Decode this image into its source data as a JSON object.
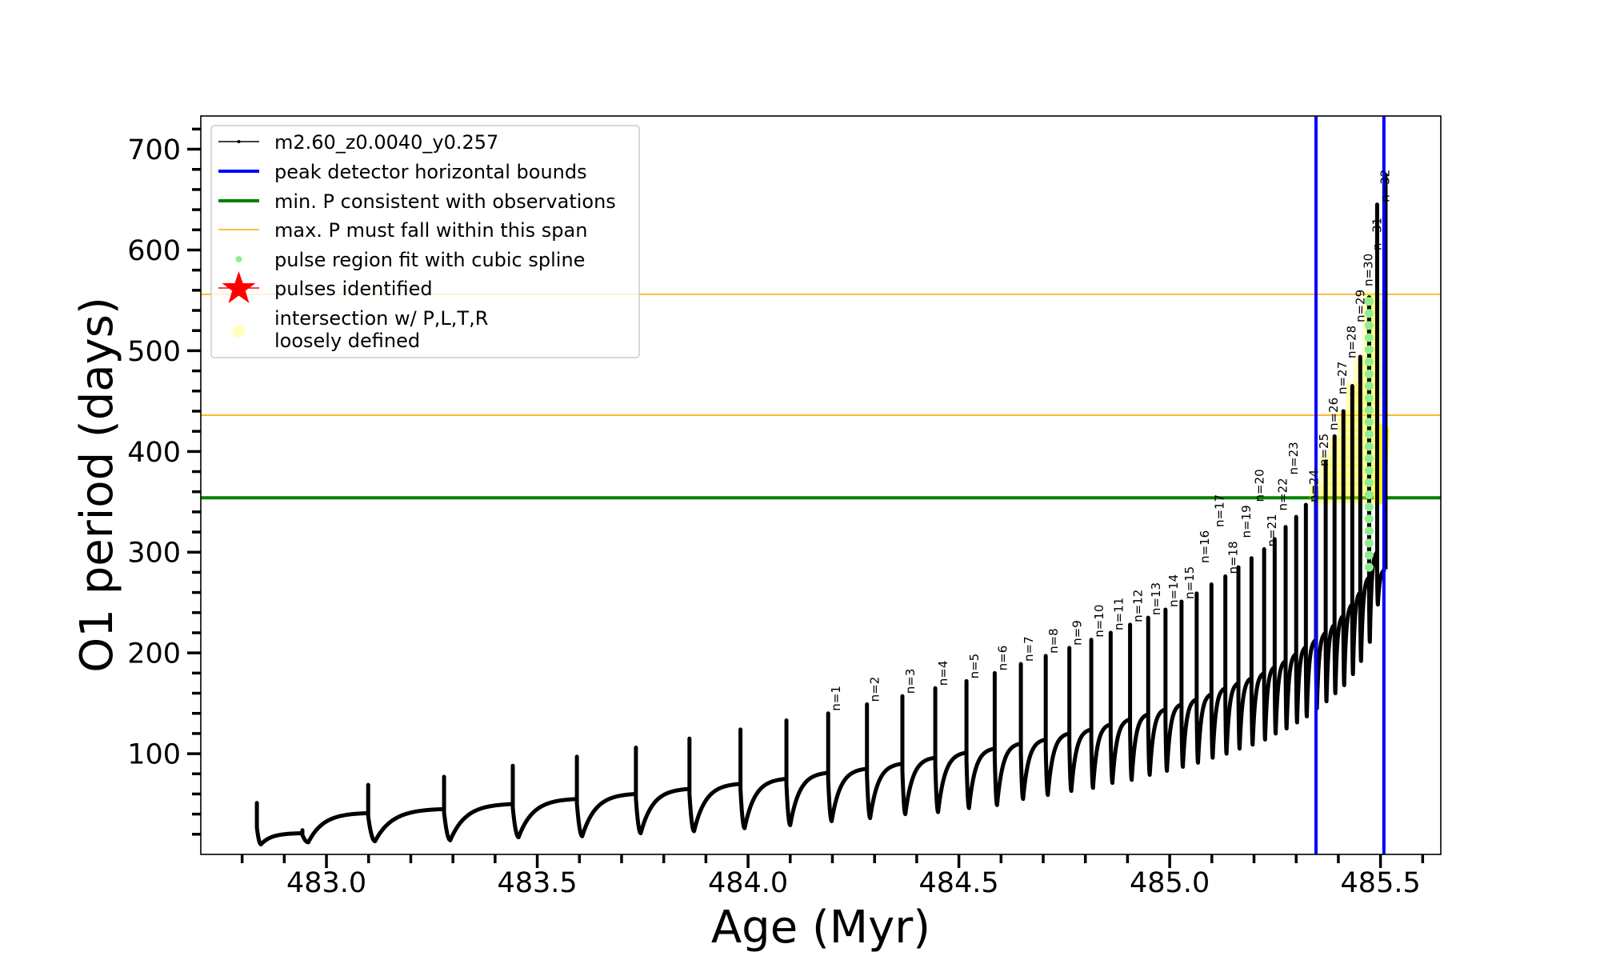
{
  "chart_data": {
    "type": "line",
    "xlabel": "Age (Myr)",
    "ylabel": "O1 period (days)",
    "xlim": [
      482.702,
      485.643
    ],
    "ylim": [
      0,
      733
    ],
    "x_ticks": [
      "483.0",
      "483.5",
      "484.0",
      "484.5",
      "485.0",
      "485.5"
    ],
    "x_tick_values": [
      483.0,
      483.5,
      484.0,
      484.5,
      485.0,
      485.5
    ],
    "x_minor_step": 0.1,
    "y_ticks": [
      "100",
      "200",
      "300",
      "400",
      "500",
      "600",
      "700"
    ],
    "y_tick_values": [
      100,
      200,
      300,
      400,
      500,
      600,
      700
    ],
    "y_minor_step": 20,
    "grid": false,
    "legend_placement": "top-left",
    "series": [
      {
        "name": "m2.60_z0.0040_y0.257",
        "color": "#000000",
        "pulses": [
          {
            "age": 482.835,
            "pre": 29,
            "peak": 51,
            "min": 10,
            "label": ""
          },
          {
            "age": 482.943,
            "pre": 21,
            "peak": 24,
            "min": 12,
            "label": ""
          },
          {
            "age": 483.099,
            "pre": 41,
            "peak": 69,
            "min": 13,
            "label": ""
          },
          {
            "age": 483.279,
            "pre": 45,
            "peak": 77,
            "min": 14,
            "label": ""
          },
          {
            "age": 483.442,
            "pre": 50,
            "peak": 88,
            "min": 17,
            "label": ""
          },
          {
            "age": 483.594,
            "pre": 55,
            "peak": 97,
            "min": 18,
            "label": ""
          },
          {
            "age": 483.734,
            "pre": 60,
            "peak": 106,
            "min": 21,
            "label": ""
          },
          {
            "age": 483.861,
            "pre": 65,
            "peak": 115,
            "min": 23,
            "label": ""
          },
          {
            "age": 483.982,
            "pre": 70,
            "peak": 124,
            "min": 26,
            "label": ""
          },
          {
            "age": 484.091,
            "pre": 75,
            "peak": 133,
            "min": 29,
            "label": ""
          },
          {
            "age": 484.19,
            "pre": 81,
            "peak": 140,
            "min": 33,
            "label": "n=1"
          },
          {
            "age": 484.282,
            "pre": 85,
            "peak": 149,
            "min": 36,
            "label": "n=2"
          },
          {
            "age": 484.366,
            "pre": 90,
            "peak": 157,
            "min": 40,
            "label": "n=3"
          },
          {
            "age": 484.444,
            "pre": 96,
            "peak": 165,
            "min": 42,
            "label": "n=4"
          },
          {
            "age": 484.518,
            "pre": 101,
            "peak": 172,
            "min": 46,
            "label": "n=5"
          },
          {
            "age": 484.585,
            "pre": 105,
            "peak": 180,
            "min": 49,
            "label": "n=6"
          },
          {
            "age": 484.647,
            "pre": 110,
            "peak": 189,
            "min": 55,
            "label": "n=7"
          },
          {
            "age": 484.706,
            "pre": 114,
            "peak": 197,
            "min": 59,
            "label": "n=8"
          },
          {
            "age": 484.762,
            "pre": 120,
            "peak": 205,
            "min": 63,
            "label": "n=9"
          },
          {
            "age": 484.814,
            "pre": 124,
            "peak": 213,
            "min": 66,
            "label": "n=10"
          },
          {
            "age": 484.86,
            "pre": 129,
            "peak": 220,
            "min": 71,
            "label": "n=11"
          },
          {
            "age": 484.906,
            "pre": 134,
            "peak": 228,
            "min": 74,
            "label": "n=12"
          },
          {
            "age": 484.949,
            "pre": 139,
            "peak": 235,
            "min": 79,
            "label": "n=13"
          },
          {
            "age": 484.99,
            "pre": 144,
            "peak": 243,
            "min": 83,
            "label": "n=14"
          },
          {
            "age": 485.028,
            "pre": 149,
            "peak": 251,
            "min": 87,
            "label": "n=15"
          },
          {
            "age": 485.064,
            "pre": 154,
            "peak": 259,
            "min": 91,
            "label": "n=16"
          },
          {
            "age": 485.099,
            "pre": 159,
            "peak": 268,
            "min": 96,
            "label": "n=17"
          },
          {
            "age": 485.132,
            "pre": 165,
            "peak": 276,
            "min": 100,
            "label": "n=18"
          },
          {
            "age": 485.163,
            "pre": 170,
            "peak": 285,
            "min": 105,
            "label": "n=19"
          },
          {
            "age": 485.194,
            "pre": 175,
            "peak": 294,
            "min": 109,
            "label": "n=20"
          },
          {
            "age": 485.224,
            "pre": 180,
            "peak": 303,
            "min": 114,
            "label": "n=21"
          },
          {
            "age": 485.249,
            "pre": 186,
            "peak": 313,
            "min": 120,
            "label": "n=22"
          },
          {
            "age": 485.275,
            "pre": 192,
            "peak": 325,
            "min": 125,
            "label": "n=23"
          },
          {
            "age": 485.3,
            "pre": 199,
            "peak": 335,
            "min": 131,
            "label": ""
          },
          {
            "age": 485.323,
            "pre": 206,
            "peak": 347,
            "min": 137,
            "label": "n=24"
          },
          {
            "age": 485.347,
            "pre": 213,
            "peak": 365,
            "min": 145,
            "label": "n=25"
          },
          {
            "age": 485.37,
            "pre": 220,
            "peak": 390,
            "min": 152,
            "label": "n=26"
          },
          {
            "age": 485.391,
            "pre": 228,
            "peak": 415,
            "min": 160,
            "label": "n=27"
          },
          {
            "age": 485.412,
            "pre": 237,
            "peak": 440,
            "min": 168,
            "label": "n=28"
          },
          {
            "age": 485.433,
            "pre": 248,
            "peak": 465,
            "min": 179,
            "label": "n=29"
          },
          {
            "age": 485.452,
            "pre": 260,
            "peak": 494,
            "min": 192,
            "label": "n=30"
          },
          {
            "age": 485.473,
            "pre": 275,
            "peak": 553,
            "min": 211,
            "label": "n=31"
          },
          {
            "age": 485.492,
            "pre": 300,
            "peak": 645,
            "min": 248,
            "label": "n=32"
          },
          {
            "age": 485.512,
            "pre": 283,
            "peak": 674,
            "min": 283,
            "label": ""
          }
        ]
      }
    ],
    "vertical_lines": {
      "name": "peak detector horizontal bounds",
      "color": "#0000ff",
      "ages": [
        485.347,
        485.508
      ]
    },
    "min_period_line": {
      "name": "min. P consistent with observations",
      "color": "#008000",
      "P": 354
    },
    "max_period_span": {
      "name": "max. P must fall within this span",
      "color": "#ffa500",
      "P": [
        436,
        556
      ]
    },
    "spline_fit": {
      "name": "pulse region fit with cubic spline",
      "color": "#90ee90",
      "age": 485.473,
      "P_range": [
        285,
        553
      ]
    },
    "pulses_identified": {
      "name": "pulses identified",
      "color": "#ff0000"
    },
    "intersection": {
      "name_lines": [
        "intersection w/ P,L,T,R",
        "loosely defined"
      ],
      "color": "#ffff00",
      "age_range": [
        485.32,
        485.51
      ],
      "P_range": [
        354,
        556
      ],
      "dense_band": {
        "age": [
          485.499,
          485.505
        ],
        "P": [
          354,
          421
        ]
      }
    }
  },
  "legend": {
    "items": [
      {
        "label": "m2.60_z0.0040_y0.257"
      },
      {
        "label": "peak detector horizontal bounds"
      },
      {
        "label": "min. P consistent with observations"
      },
      {
        "label": "max. P must fall within this span"
      },
      {
        "label": "pulse region fit with cubic spline"
      },
      {
        "label": "pulses identified"
      },
      {
        "label_lines": [
          "intersection w/ P,L,T,R",
          "loosely defined"
        ]
      }
    ]
  }
}
